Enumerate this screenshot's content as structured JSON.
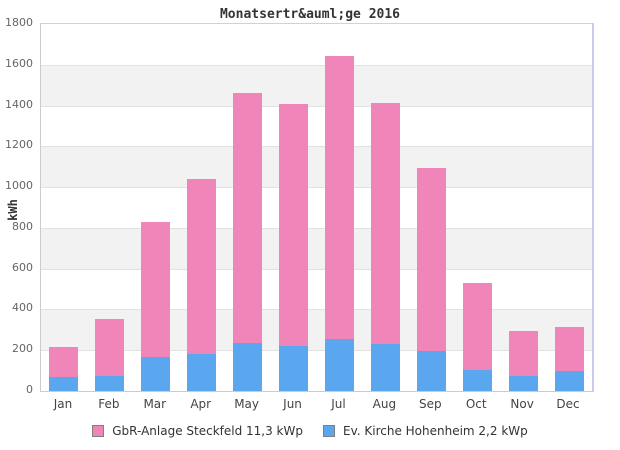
{
  "chart_data": {
    "type": "bar",
    "stacked": true,
    "title": "Monatsertr&auml;ge 2016",
    "xlabel": "",
    "ylabel": "kWh",
    "ylim": [
      0,
      1800
    ],
    "ytick_step": 200,
    "grid": "horizontal-bands",
    "legend_position": "bottom",
    "categories": [
      "Jan",
      "Feb",
      "Mar",
      "Apr",
      "May",
      "Jun",
      "Jul",
      "Aug",
      "Sep",
      "Oct",
      "Nov",
      "Dec"
    ],
    "series": [
      {
        "name": "GbR-Anlage Steckfeld 11,3 kWp",
        "color": "#ef85b8",
        "stack_position": "top",
        "values": [
          145,
          280,
          665,
          860,
          1225,
          1190,
          1390,
          1185,
          900,
          425,
          220,
          215
        ]
      },
      {
        "name": "Ev. Kirche Hohenheim 2,2 kWp",
        "color": "#5aa7f0",
        "stack_position": "bottom",
        "values": [
          70,
          75,
          165,
          180,
          235,
          220,
          255,
          230,
          195,
          105,
          75,
          100
        ]
      }
    ],
    "stacked_totals": [
      215,
      355,
      830,
      1040,
      1460,
      1410,
      1645,
      1415,
      1095,
      530,
      295,
      315
    ]
  },
  "colors": {
    "band_gray": "#f2f2f2",
    "gridline": "#e2e2e2",
    "frame": "#cccccc",
    "frame_right": "#c9cce9"
  }
}
